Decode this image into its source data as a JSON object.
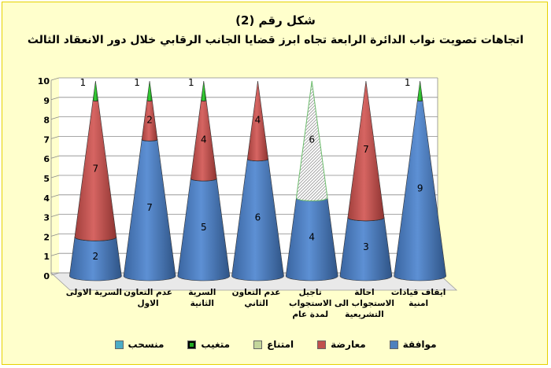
{
  "chart_data": {
    "type": "bar",
    "variant": "3d-stacked-cone",
    "title": "شكل رقم (2)",
    "subtitle": "اتجاهات تصويت نواب الدائرة الرابعة تجاه ابرز قضايا الجانب الرقابي خلال دور الانعقاد الثالث",
    "categories": [
      "السرية الاولى",
      "عدم التعاون الاول",
      "السرية الثانية",
      "عدم التعاون الثاني",
      "تاجيل الاستجواب لمدة عام",
      "احالة الاستجواب الى التشريعية",
      "ايقاف قيادات امنية"
    ],
    "ylim": [
      0,
      10
    ],
    "yticks": [
      0,
      1,
      2,
      3,
      4,
      5,
      6,
      7,
      8,
      9,
      10
    ],
    "grid": true,
    "legend_position": "bottom",
    "series": [
      {
        "name": "موافقة",
        "color": "#4f81bd",
        "values": [
          2,
          7,
          5,
          6,
          4,
          3,
          9
        ]
      },
      {
        "name": "معارضة",
        "color": "#c0504d",
        "values": [
          7,
          2,
          4,
          4,
          0,
          7,
          0
        ]
      },
      {
        "name": "امتناع",
        "color": "#9bbb59",
        "values": [
          0,
          0,
          0,
          0,
          6,
          0,
          0
        ]
      },
      {
        "name": "متغيب",
        "color": "#22aa22",
        "values": [
          1,
          1,
          1,
          0,
          0,
          0,
          1
        ]
      },
      {
        "name": "منسحب",
        "color": "#4bacc6",
        "values": [
          0,
          0,
          0,
          0,
          0,
          0,
          0
        ]
      }
    ],
    "data_labels": [
      [
        "2",
        "7",
        null,
        "1"
      ],
      [
        "7",
        "2",
        null,
        "1"
      ],
      [
        "5",
        "4",
        null,
        "1"
      ],
      [
        "6",
        "4",
        null,
        null
      ],
      [
        "4",
        null,
        "6",
        null
      ],
      [
        "3",
        "7",
        null,
        null
      ],
      [
        "9",
        null,
        null,
        "1"
      ]
    ]
  }
}
